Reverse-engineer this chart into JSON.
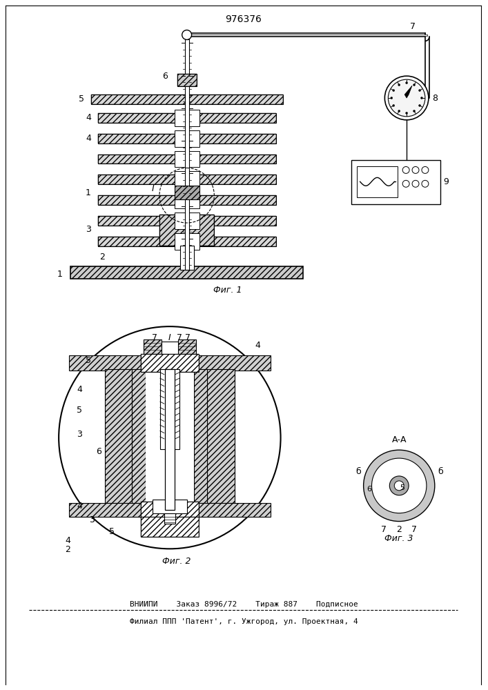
{
  "title": "976376",
  "fig1_label": "Фиг. 1",
  "fig2_label": "Фиг. 2",
  "fig3_label": "Фиг. 3",
  "footer_line1": "ВНИИПИ    Заказ 8996/72    Тираж 887    Подписное",
  "footer_line2": "Филиал ППП 'Патент', г. Ужгород, ул. Проектная, 4",
  "bg_color": "#ffffff"
}
